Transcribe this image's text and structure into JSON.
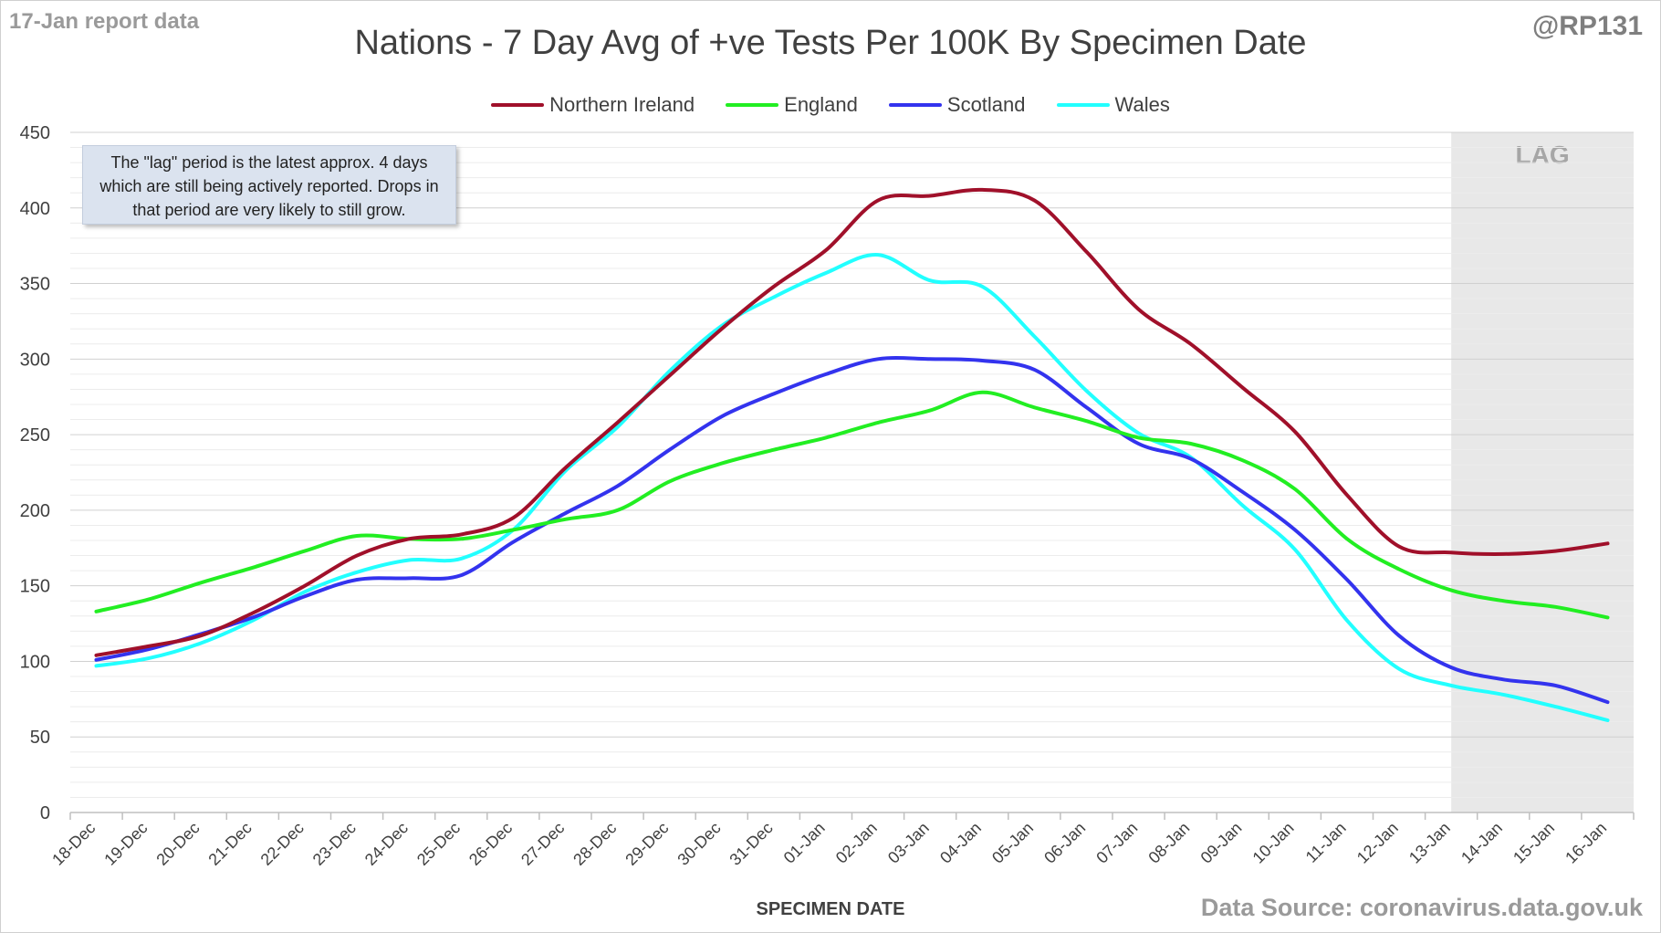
{
  "header": {
    "report_date": "17-Jan report data",
    "handle": "@RP131",
    "source": "Data Source: coronavirus.data.gov.uk"
  },
  "note": "The \"lag\" period is the latest approx. 4 days which are still being actively reported. Drops in that period are very likely to still grow.",
  "chart_data": {
    "type": "line",
    "title": "Nations - 7 Day Avg of +ve Tests Per 100K By Specimen Date",
    "xlabel": "SPECIMEN DATE",
    "ylabel": "",
    "ylim": [
      0,
      450
    ],
    "yticks": [
      0,
      50,
      100,
      150,
      200,
      250,
      300,
      350,
      400,
      450
    ],
    "grid": true,
    "legend_position": "top",
    "lag_label": "LAG",
    "lag_start": "13-Jan",
    "x": [
      "18-Dec",
      "19-Dec",
      "20-Dec",
      "21-Dec",
      "22-Dec",
      "23-Dec",
      "24-Dec",
      "25-Dec",
      "26-Dec",
      "27-Dec",
      "28-Dec",
      "29-Dec",
      "30-Dec",
      "31-Dec",
      "01-Jan",
      "02-Jan",
      "03-Jan",
      "04-Jan",
      "05-Jan",
      "06-Jan",
      "07-Jan",
      "08-Jan",
      "09-Jan",
      "10-Jan",
      "11-Jan",
      "12-Jan",
      "13-Jan",
      "14-Jan",
      "15-Jan",
      "16-Jan"
    ],
    "series": [
      {
        "name": "Northern Ireland",
        "color": "#a0102a",
        "values": [
          104,
          110,
          117,
          132,
          150,
          170,
          181,
          184,
          195,
          228,
          258,
          289,
          320,
          348,
          372,
          405,
          408,
          412,
          405,
          371,
          333,
          310,
          281,
          252,
          210,
          176,
          172,
          171,
          173,
          178
        ]
      },
      {
        "name": "England",
        "color": "#22ee22",
        "values": [
          133,
          141,
          152,
          162,
          173,
          183,
          181,
          181,
          187,
          194,
          200,
          219,
          231,
          240,
          248,
          258,
          266,
          278,
          268,
          259,
          248,
          244,
          233,
          214,
          181,
          161,
          147,
          140,
          136,
          129
        ]
      },
      {
        "name": "Scotland",
        "color": "#3333ee",
        "values": [
          101,
          108,
          118,
          129,
          143,
          154,
          155,
          157,
          179,
          198,
          216,
          240,
          262,
          277,
          290,
          300,
          300,
          299,
          293,
          268,
          244,
          234,
          212,
          187,
          154,
          117,
          96,
          88,
          84,
          73
        ]
      },
      {
        "name": "Wales",
        "color": "#22ffff",
        "values": [
          97,
          102,
          112,
          127,
          146,
          159,
          167,
          168,
          187,
          226,
          255,
          292,
          322,
          341,
          357,
          369,
          352,
          348,
          315,
          279,
          251,
          235,
          203,
          174,
          127,
          95,
          84,
          78,
          70,
          61
        ]
      }
    ]
  }
}
